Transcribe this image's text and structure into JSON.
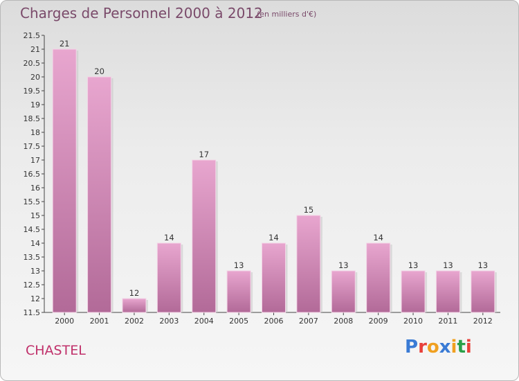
{
  "header": {
    "title": "Charges de Personnel 2000 à 2012",
    "subtitle": "(en milliers d'€)"
  },
  "footer": {
    "commune": "CHASTEL",
    "logo": "Proxiti",
    "logo_letters": [
      "P",
      "r",
      "o",
      "x",
      "i",
      "t",
      "i"
    ],
    "logo_colors": [
      "#3a7bd5",
      "#e8403a",
      "#f0a020",
      "#3a7bd5",
      "#f0a020",
      "#2aa048",
      "#e8403a"
    ]
  },
  "colors": {
    "bar_light": "#e8a6cf",
    "bar_dark": "#b26a98",
    "accent": "#c0306a"
  },
  "chart_data": {
    "type": "bar",
    "categories": [
      "2000",
      "2001",
      "2002",
      "2003",
      "2004",
      "2005",
      "2006",
      "2007",
      "2008",
      "2009",
      "2010",
      "2011",
      "2012"
    ],
    "values": [
      21,
      20,
      12,
      14,
      17,
      13,
      14,
      15,
      13,
      14,
      13,
      13,
      13
    ],
    "title": "Charges de Personnel 2000 à 2012",
    "subtitle": "(en milliers d'€)",
    "ylim": [
      11.5,
      21.5
    ],
    "yticks": [
      "11.5",
      "12",
      "12.5",
      "13",
      "13.5",
      "14",
      "14.5",
      "15",
      "15.5",
      "16",
      "16.5",
      "17",
      "17.5",
      "18",
      "18.5",
      "19",
      "19.5",
      "20",
      "20.5",
      "21",
      "21.5"
    ],
    "grid": false,
    "legend": "none"
  }
}
